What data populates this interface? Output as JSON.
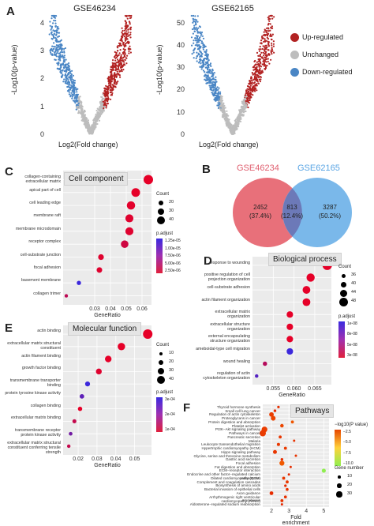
{
  "panelA": {
    "label": "A",
    "left_title": "GSE46234",
    "right_title": "GSE62165",
    "xlabel": "Log2(Fold change)",
    "ylabel": "-Log10(p-value)",
    "left_yticks": [
      "0",
      "1",
      "2",
      "3",
      "4"
    ],
    "right_yticks": [
      "0",
      "10",
      "20",
      "30",
      "40",
      "50"
    ],
    "legend": [
      {
        "label": "Up-regulated",
        "color": "#b22222"
      },
      {
        "label": "Unchanged",
        "color": "#bdbdbd"
      },
      {
        "label": "Down-regulated",
        "color": "#4a86c5"
      }
    ]
  },
  "panelB": {
    "label": "B",
    "left_name": "GSE46234",
    "right_name": "GSE62165",
    "left_only": "2452",
    "left_pct": "(37.4%)",
    "overlap": "813",
    "overlap_pct": "(12.4%)",
    "right_only": "3287",
    "right_pct": "(50.2%)",
    "left_color": "#e8707a",
    "right_color": "#7ab8ea",
    "overlap_color": "#6c79b8"
  },
  "panelC": {
    "label": "C",
    "title": "Cell component",
    "xlabel": "GeneRatio",
    "terms": [
      "collagen-containing extracellular matrix",
      "apical part of cell",
      "cell leading edge",
      "membrane raft",
      "membrane microdomain",
      "receptor complex",
      "cell-substrate junction",
      "focal adhesion",
      "basement membrane",
      "collagen trimer"
    ],
    "xticks": [
      "0.03",
      "0.04",
      "0.05",
      "0.06"
    ],
    "count_title": "Count",
    "count_labels": [
      "20",
      "30",
      "40"
    ],
    "padj_title": "p.adjust",
    "padj_labels": [
      "1.25e-05",
      "1.00e-05",
      "7.50e-06",
      "5.00e-06",
      "2.50e-06"
    ]
  },
  "panelD": {
    "label": "D",
    "title": "Biological process",
    "xlabel": "GeneRatio",
    "terms": [
      "response to wounding",
      "positive regulation of cell projection organization",
      "cell-substrate adhesion",
      "actin filament organization",
      "extracellular matrix organization",
      "extracellular structure organization",
      "external encapsulating structure organization",
      "ameboidal-type cell migration",
      "wound healing",
      "regulation of actin cytoskeleton organization"
    ],
    "xticks": [
      "0.055",
      "0.060",
      "0.065"
    ],
    "count_title": "Count",
    "count_labels": [
      "36",
      "40",
      "44",
      "48"
    ],
    "padj_title": "p.adjust",
    "padj_labels": [
      "1e-08",
      "8e-08",
      "5e-08",
      "3e-08"
    ]
  },
  "panelE": {
    "label": "E",
    "title": "Molecular function",
    "xlabel": "GeneRatio",
    "terms": [
      "actin binding",
      "extracellular matrix structural constituent",
      "actin filament binding",
      "growth factor binding",
      "transmembrane transporter binding",
      "protein tyrosine kinase activity",
      "collagen binding",
      "extracellular matrix binding",
      "transmembrane receptor protein kinase activity",
      "extracellular matrix structural constituent conferring tensile strength"
    ],
    "xticks": [
      "0.02",
      "0.03",
      "0.04",
      "0.05"
    ],
    "count_title": "Count",
    "count_labels": [
      "10",
      "20",
      "30",
      "40"
    ],
    "padj_title": "p.adjust",
    "padj_labels": [
      "3e-04",
      "2e-04",
      "1e-04"
    ]
  },
  "panelF": {
    "label": "F",
    "title": "Pathways",
    "xlabel": "Fold enrichment",
    "terms": [
      "Thyroid hormone synthesis",
      "Small cell lung cancer",
      "Regulation of actin cytoskeleton",
      "Proteoglycans in cancer",
      "Protein digestion and absorption",
      "Platelet activation",
      "PI3K−Akt signaling pathway",
      "Pathways in cancer",
      "Pancreatic secretion",
      "Malaria",
      "Leukocyte transendothelial migration",
      "Hypertrophic cardiomyopathy (HCM)",
      "Hippo signaling pathway",
      "Glycine, serine and threonine metabolism",
      "Gastric acid secretion",
      "Focal adhesion",
      "Fat digestion and absorption",
      "ECM−receptor interaction",
      "Endocrine and other factor−regulated calcium reabsorption",
      "Dilated cardiomyopathy (DCM)",
      "Complement and coagulation cascades",
      "Biosynthesis of amino acids",
      "Bacterial invasion of epithelial cells",
      "Axon guidance",
      "Arrhythmogenic right ventricular cardiomyopathy (ARVC)",
      "Amoebiasis",
      "Aldosterone−regulated sodium reabsorption"
    ],
    "xticks": [
      "2",
      "3",
      "4",
      "5"
    ],
    "color_title": "−log10(P value)",
    "color_labels": [
      "−2.5",
      "−5.0",
      "−7.5",
      "−10.0"
    ],
    "size_title": "Gene number",
    "size_labels": [
      "10",
      "20",
      "30"
    ]
  },
  "chart_data": [
    {
      "type": "scatter",
      "title": "Cell component",
      "xlabel": "GeneRatio",
      "categories": [
        "collagen-containing extracellular matrix",
        "apical part of cell",
        "cell leading edge",
        "membrane raft",
        "membrane microdomain",
        "receptor complex",
        "cell-substrate junction",
        "focal adhesion",
        "basement membrane",
        "collagen trimer"
      ],
      "values": [
        0.064,
        0.056,
        0.053,
        0.052,
        0.052,
        0.049,
        0.034,
        0.033,
        0.02,
        0.012
      ],
      "count": [
        45,
        40,
        38,
        36,
        36,
        33,
        22,
        21,
        13,
        8
      ],
      "p_adjust": [
        2.6e-06,
        2.6e-06,
        2.8e-06,
        3e-06,
        3e-06,
        4e-06,
        3e-06,
        3e-06,
        1.25e-05,
        5e-06
      ],
      "xlim": [
        0.01,
        0.066
      ]
    },
    {
      "type": "scatter",
      "title": "Biological process",
      "xlabel": "GeneRatio",
      "categories": [
        "response to wounding",
        "positive regulation of cell projection organization",
        "cell-substrate adhesion",
        "actin filament organization",
        "extracellular matrix organization",
        "extracellular structure organization",
        "external encapsulating structure organization",
        "ameboidal-type cell migration",
        "wound healing",
        "regulation of actin cytoskeleton organization"
      ],
      "values": [
        0.068,
        0.064,
        0.063,
        0.063,
        0.059,
        0.059,
        0.059,
        0.059,
        0.053,
        0.051
      ],
      "count": [
        50,
        47,
        46,
        46,
        43,
        43,
        43,
        43,
        38,
        36
      ],
      "p_adjust": [
        3e-08,
        3e-08,
        3e-08,
        3e-08,
        3e-08,
        3e-08,
        3e-08,
        1e-07,
        5e-08,
        9e-08
      ],
      "xlim": [
        0.05,
        0.069
      ]
    },
    {
      "type": "scatter",
      "title": "Molecular function",
      "xlabel": "GeneRatio",
      "categories": [
        "actin binding",
        "extracellular matrix structural constituent",
        "actin filament binding",
        "growth factor binding",
        "transmembrane transporter binding",
        "protein tyrosine kinase activity",
        "collagen binding",
        "extracellular matrix binding",
        "transmembrane receptor protein kinase activity",
        "extracellular matrix structural constituent conferring tensile strength"
      ],
      "values": [
        0.057,
        0.043,
        0.036,
        0.031,
        0.025,
        0.022,
        0.021,
        0.018,
        0.016,
        0.015
      ],
      "count": [
        44,
        33,
        28,
        24,
        19,
        17,
        16,
        14,
        12,
        11
      ],
      "p_adjust": [
        5e-05,
        5e-05,
        5e-05,
        6e-05,
        0.0003,
        0.00025,
        5e-05,
        0.0001,
        0.00022,
        0.0001
      ],
      "xlim": [
        0.012,
        0.059
      ]
    },
    {
      "type": "scatter",
      "title": "Pathways",
      "xlabel": "Fold enrichment",
      "categories": [
        "Thyroid hormone synthesis",
        "Small cell lung cancer",
        "Regulation of actin cytoskeleton",
        "Proteoglycans in cancer",
        "Protein digestion and absorption",
        "Platelet activation",
        "PI3K−Akt signaling pathway",
        "Pathways in cancer",
        "Pancreatic secretion",
        "Malaria",
        "Leukocyte transendothelial migration",
        "Hypertrophic cardiomyopathy (HCM)",
        "Hippo signaling pathway",
        "Glycine, serine and threonine metabolism",
        "Gastric acid secretion",
        "Focal adhesion",
        "Fat digestion and absorption",
        "ECM−receptor interaction",
        "Endocrine and other factor−regulated calcium reabsorption",
        "Dilated cardiomyopathy (DCM)",
        "Complement and coagulation cascades",
        "Biosynthesis of amino acids",
        "Bacterial invasion of epithelial cells",
        "Axon guidance",
        "Arrhythmogenic right ventricular cardiomyopathy (ARVC)",
        "Amoebiasis",
        "Aldosterone−regulated sodium reabsorption"
      ],
      "values": [
        2.4,
        2.2,
        2.0,
        2.1,
        3.2,
        2.6,
        1.6,
        1.5,
        2.5,
        3.3,
        2.4,
        2.8,
        2.2,
        3.4,
        2.6,
        2.6,
        3.1,
        5.0,
        3.0,
        2.7,
        2.9,
        2.8,
        2.9,
        2.0,
        2.8,
        2.6,
        2.6
      ],
      "count": [
        8,
        9,
        20,
        21,
        11,
        14,
        27,
        30,
        11,
        7,
        12,
        11,
        16,
        7,
        9,
        22,
        7,
        17,
        7,
        11,
        11,
        8,
        10,
        15,
        10,
        11,
        7
      ],
      "neg_log10_p": [
        -2.4,
        -2.2,
        -3.2,
        -3.6,
        -4.6,
        -3.7,
        -3.2,
        -3.1,
        -2.8,
        -2.6,
        -2.9,
        -3.1,
        -2.8,
        -2.7,
        -2.3,
        -4.8,
        -2.3,
        -10.5,
        -2.0,
        -2.9,
        -3.0,
        -2.1,
        -2.7,
        -2.2,
        -2.5,
        -2.7,
        -2.0
      ],
      "xlim": [
        1.5,
        5.3
      ]
    }
  ]
}
